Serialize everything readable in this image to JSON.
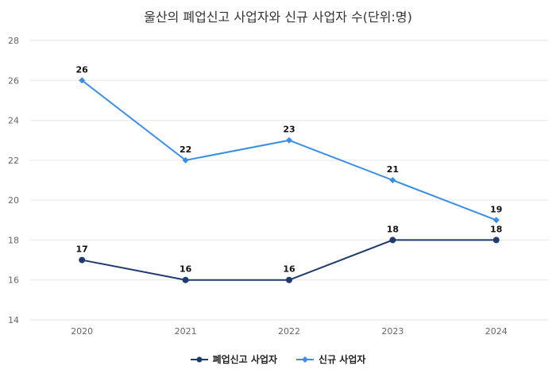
{
  "title": "울산의 폐업신고 사업자와 신규 사업자 수(단위:명)",
  "chart_data": {
    "type": "line",
    "title": "울산의 폐업신고 사업자와 신규 사업자 수(단위:명)",
    "categories": [
      "2020",
      "2021",
      "2022",
      "2023",
      "2024"
    ],
    "yticks": [
      "14",
      "16",
      "18",
      "20",
      "22",
      "24",
      "26",
      "28"
    ],
    "ylim": [
      14,
      28
    ],
    "grid": true,
    "legend_position": "bottom",
    "series": [
      {
        "name": "폐업신고 사업자",
        "values": [
          17,
          16,
          16,
          18,
          18
        ],
        "color": "#1f3b6e",
        "marker": "circle"
      },
      {
        "name": "신규 사업자",
        "values": [
          26,
          22,
          23,
          21,
          19
        ],
        "color": "#3a8ee6",
        "marker": "diamond"
      }
    ]
  }
}
